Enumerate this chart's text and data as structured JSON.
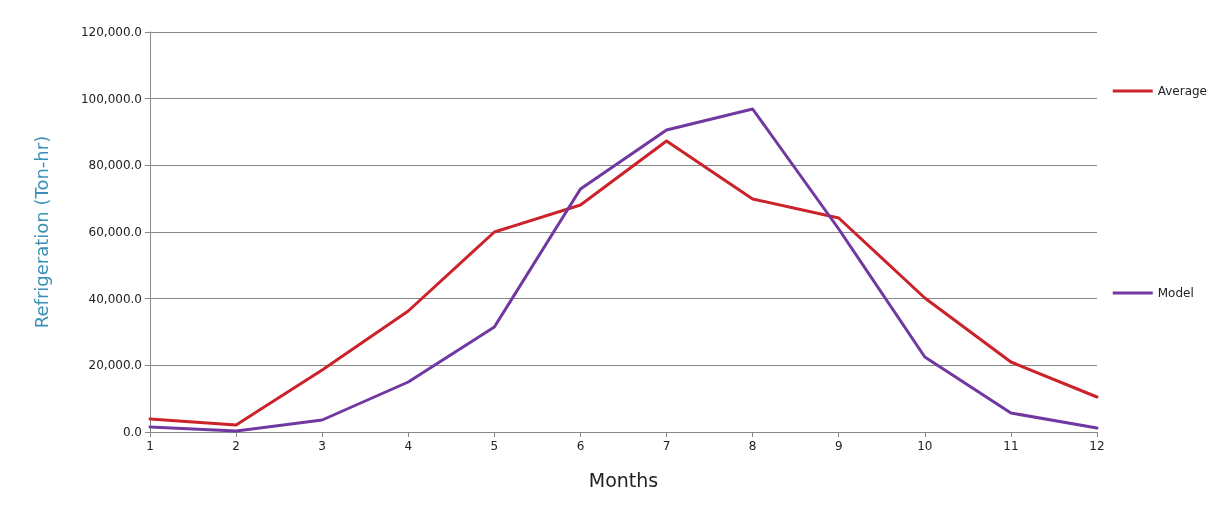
{
  "chart_data": {
    "type": "line",
    "xlabel": "Months",
    "ylabel": "Refrigeration (Ton-hr)",
    "x": [
      1,
      2,
      3,
      4,
      5,
      6,
      7,
      8,
      9,
      10,
      11,
      12
    ],
    "series": [
      {
        "name": "Average",
        "color": "#cc2229",
        "values": [
          3900,
          2100,
          18600,
          36300,
          60000,
          68100,
          87300,
          69900,
          64200,
          40200,
          21000,
          10500
        ]
      },
      {
        "name": "Model",
        "color": "#7038a0",
        "values": [
          1500,
          300,
          3600,
          15000,
          31500,
          72900,
          90600,
          96900,
          60900,
          22500,
          5700,
          1200
        ]
      }
    ],
    "xlim": [
      1,
      12
    ],
    "xticks": [
      1,
      2,
      3,
      4,
      5,
      6,
      7,
      8,
      9,
      10,
      11,
      12
    ],
    "ylim": [
      0,
      120000
    ],
    "yticks": [
      {
        "value": 0,
        "label": "0.0"
      },
      {
        "value": 20000,
        "label": "20,000.0"
      },
      {
        "value": 40000,
        "label": "40,000.0"
      },
      {
        "value": 60000,
        "label": "60,000.0"
      },
      {
        "value": 80000,
        "label": "80,000.0"
      },
      {
        "value": 100000,
        "label": "100,000.0"
      },
      {
        "value": 120000,
        "label": "120,000.0"
      }
    ],
    "grid": "y",
    "legend": "right",
    "marker": "none",
    "line_style": "solid"
  }
}
